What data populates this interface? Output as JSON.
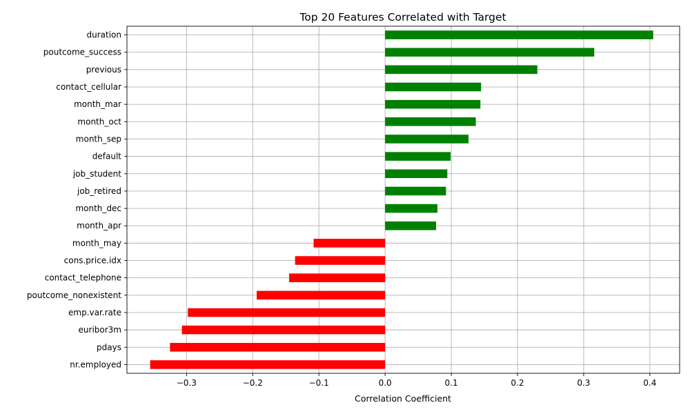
{
  "chart_data": {
    "type": "bar",
    "orientation": "horizontal",
    "title": "Top 20 Features Correlated with Target",
    "xlabel": "Correlation Coefficient",
    "ylabel": "",
    "xlim": [
      -0.39,
      0.445
    ],
    "xticks": [
      -0.3,
      -0.2,
      -0.1,
      0.0,
      0.1,
      0.2,
      0.3,
      0.4
    ],
    "xtick_labels": [
      "−0.3",
      "−0.2",
      "−0.1",
      "0.0",
      "0.1",
      "0.2",
      "0.3",
      "0.4"
    ],
    "grid": true,
    "positive_color": "#008000",
    "negative_color": "#ff0000",
    "categories": [
      "duration",
      "poutcome_success",
      "previous",
      "contact_cellular",
      "month_mar",
      "month_oct",
      "month_sep",
      "default",
      "job_student",
      "job_retired",
      "month_dec",
      "month_apr",
      "month_may",
      "cons.price.idx",
      "contact_telephone",
      "poutcome_nonexistent",
      "emp.var.rate",
      "euribor3m",
      "pdays",
      "nr.employed"
    ],
    "values": [
      0.405,
      0.316,
      0.23,
      0.145,
      0.144,
      0.137,
      0.126,
      0.099,
      0.094,
      0.092,
      0.079,
      0.077,
      -0.108,
      -0.136,
      -0.145,
      -0.194,
      -0.298,
      -0.307,
      -0.325,
      -0.355
    ]
  }
}
